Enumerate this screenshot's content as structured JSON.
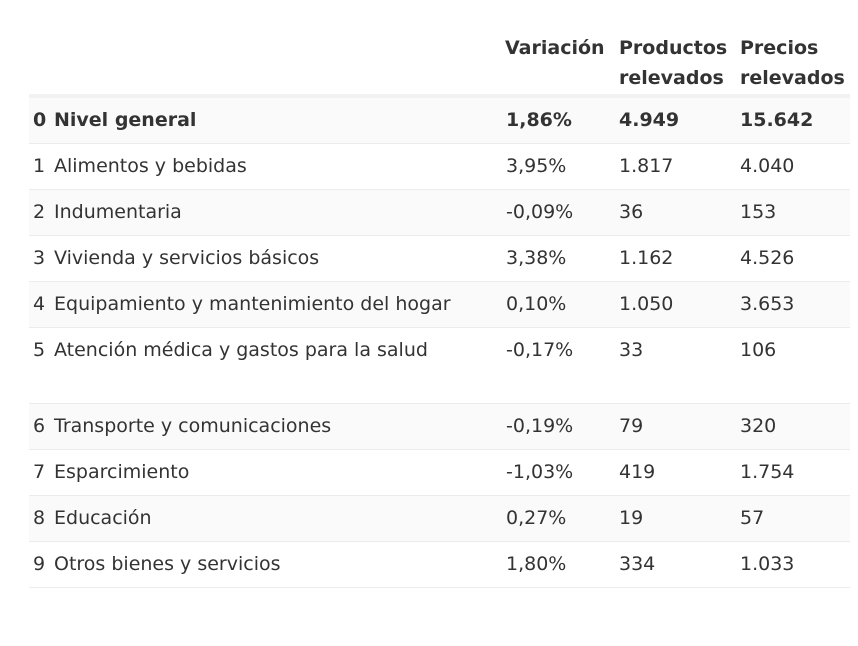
{
  "headers": {
    "variacion": "Variación",
    "productos": "Productos relevados",
    "precios": "Precios relevados"
  },
  "rows": [
    {
      "idx": "0",
      "name": "Nivel general",
      "variacion": "1,86%",
      "productos": "4.949",
      "precios": "15.642"
    },
    {
      "idx": "1",
      "name": "Alimentos y bebidas",
      "variacion": "3,95%",
      "productos": "1.817",
      "precios": "4.040"
    },
    {
      "idx": "2",
      "name": "Indumentaria",
      "variacion": "-0,09%",
      "productos": "36",
      "precios": "153"
    },
    {
      "idx": "3",
      "name": "Vivienda y servicios básicos",
      "variacion": "3,38%",
      "productos": "1.162",
      "precios": "4.526"
    },
    {
      "idx": "4",
      "name": "Equipamiento y mantenimiento del hogar",
      "variacion": "0,10%",
      "productos": "1.050",
      "precios": "3.653"
    },
    {
      "idx": "5",
      "name": "Atención médica y gastos para la salud",
      "variacion": "-0,17%",
      "productos": "33",
      "precios": "106"
    },
    {
      "idx": "6",
      "name": "Transporte y comunicaciones",
      "variacion": "-0,19%",
      "productos": "79",
      "precios": "320"
    },
    {
      "idx": "7",
      "name": "Esparcimiento",
      "variacion": "-1,03%",
      "productos": "419",
      "precios": "1.754"
    },
    {
      "idx": "8",
      "name": "Educación",
      "variacion": "0,27%",
      "productos": "19",
      "precios": "57"
    },
    {
      "idx": "9",
      "name": "Otros bienes y servicios",
      "variacion": "1,80%",
      "productos": "334",
      "precios": "1.033"
    }
  ]
}
